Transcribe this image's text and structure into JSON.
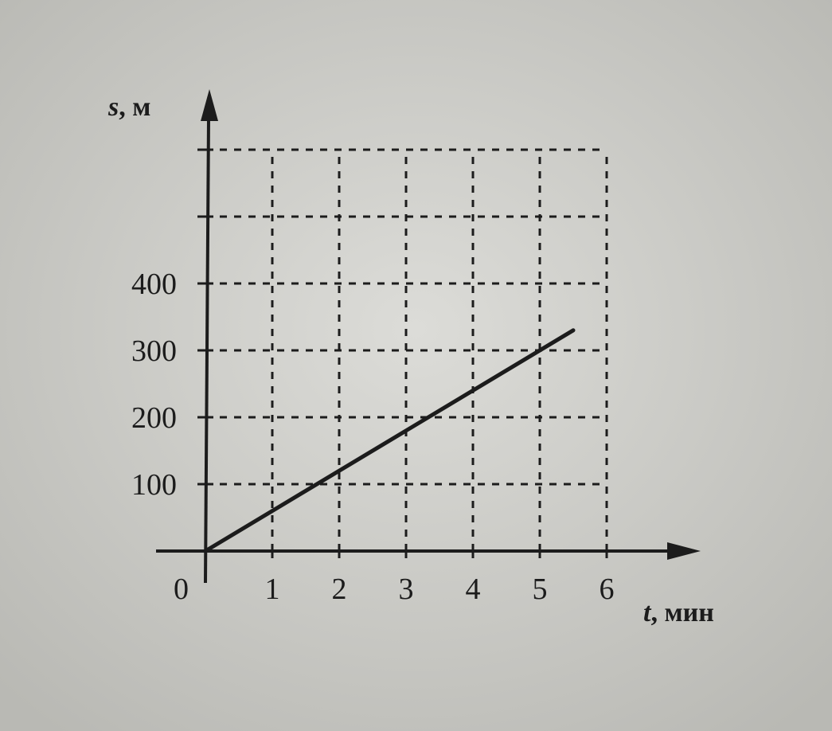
{
  "chart_data": {
    "type": "line",
    "title": "",
    "xlabel": {
      "var": "t",
      "unit": ", мин"
    },
    "ylabel": {
      "var": "s",
      "unit": ", м"
    },
    "x_ticks": [
      "1",
      "2",
      "3",
      "4",
      "5",
      "6"
    ],
    "y_ticks": [
      "100",
      "200",
      "300",
      "400"
    ],
    "origin_label": "0",
    "xlim": [
      0,
      6
    ],
    "ylim": [
      0,
      600
    ],
    "grid": true,
    "grid_style": "dashed",
    "series": [
      {
        "x": [
          0,
          5.5
        ],
        "y": [
          0,
          330
        ]
      }
    ]
  }
}
